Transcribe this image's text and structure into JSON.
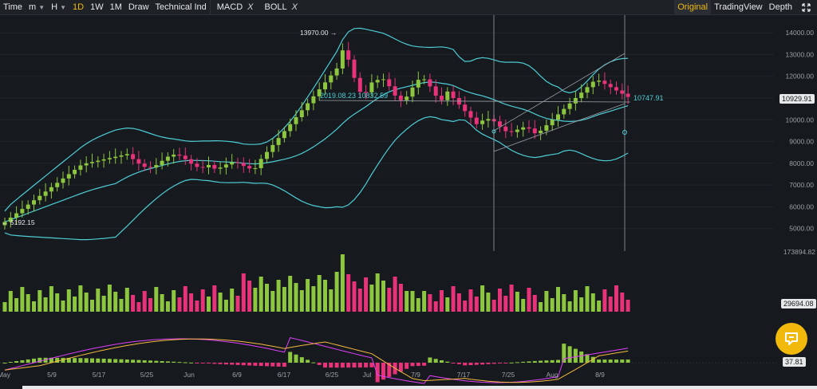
{
  "toolbar": {
    "time": "Time",
    "minute": "m",
    "hour": "H",
    "intervals": [
      "1D",
      "1W",
      "1M"
    ],
    "active_interval": "1D",
    "draw": "Draw",
    "technical": "Technical Ind",
    "indicators": [
      "MACD",
      "BOLL"
    ],
    "remove_glyph": "X",
    "views": [
      "Original",
      "TradingView",
      "Depth"
    ],
    "active_view": "Original"
  },
  "price_axis": {
    "ticks": [
      "14000.00",
      "13000.00",
      "12000.00",
      "11000.00",
      "10000.00",
      "9000.00",
      "8000.00",
      "7000.00",
      "6000.00",
      "5000.00"
    ],
    "current_price": "10929.91",
    "volume_max": "173894.82",
    "volume_current": "29694.08",
    "macd_current": "37.81"
  },
  "time_axis": {
    "labels": [
      "May",
      "5/9",
      "5/17",
      "5/25",
      "Jun",
      "6/9",
      "6/17",
      "6/25",
      "Jul",
      "7/9",
      "7/17",
      "7/25",
      "Aug",
      "8/9"
    ]
  },
  "annotations": {
    "high": "13970.00",
    "low": "5192.15",
    "drawing_info": "2019.08.23 10832.59",
    "line_value": "10747.91"
  },
  "colors": {
    "up": "#8dc63f",
    "down": "#e8327a",
    "bollinger": "#4ecdd6",
    "macd": "#e040fb",
    "signal": "#f5b940",
    "accent": "#f0b90b"
  },
  "chat_button": {
    "icon": "chat-icon"
  }
}
